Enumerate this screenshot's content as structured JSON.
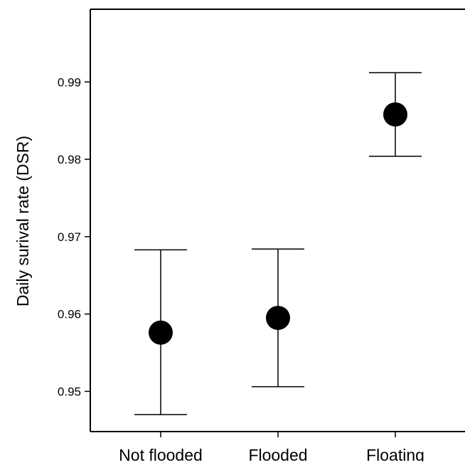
{
  "chart_data": {
    "type": "scatter",
    "title": "",
    "xlabel": "",
    "ylabel": "Daily surival rate (DSR)",
    "categories": [
      "Not flooded",
      "Flooded",
      "Floating"
    ],
    "points": [
      {
        "category": "Not flooded",
        "value": 0.9576,
        "lower": 0.947,
        "upper": 0.9683
      },
      {
        "category": "Flooded",
        "value": 0.9595,
        "lower": 0.9506,
        "upper": 0.9684
      },
      {
        "category": "Floating",
        "value": 0.9858,
        "lower": 0.9804,
        "upper": 0.9912
      }
    ],
    "ylim": [
      0.9448,
      0.9994
    ],
    "yticks": [
      0.95,
      0.96,
      0.97,
      0.98,
      0.99
    ],
    "ytick_labels": [
      "0.95",
      "0.96",
      "0.97",
      "0.98",
      "0.99"
    ],
    "grid": false,
    "legend": "none",
    "colors": {
      "marker": "#000000",
      "axis": "#000000",
      "background": "#ffffff"
    }
  }
}
